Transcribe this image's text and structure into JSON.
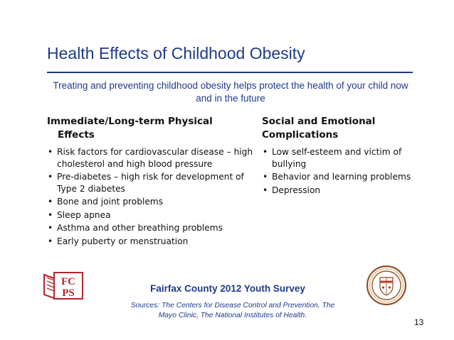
{
  "slide": {
    "title": "Health Effects of Childhood Obesity",
    "subtitle": "Treating and preventing childhood obesity helps protect the health of your child now and in the future",
    "left_column": {
      "heading_line1": "Immediate/Long-term Physical",
      "heading_line2": "Effects",
      "items": [
        "Risk factors for cardiovascular disease – high cholesterol and high blood pressure",
        "Pre-diabetes – high risk for development of Type 2 diabetes",
        "Bone and joint problems",
        "Sleep apnea",
        "Asthma and other breathing problems",
        "Early puberty or menstruation"
      ]
    },
    "right_column": {
      "heading_line1": "Social and Emotional",
      "heading_line2": "Complications",
      "items": [
        "Low self-esteem and victim of bullying",
        "Behavior and learning problems",
        "Depression"
      ]
    },
    "bullet_glyph": "•",
    "footer": {
      "survey_title": "Fairfax County 2012 Youth Survey",
      "sources": "Sources: The Centers for Disease Control and Prevention, The Mayo Clinic, The National Institutes of Health.",
      "page_number": "13"
    },
    "logo_fcps": {
      "top": "FC",
      "bottom": "PS"
    },
    "colors": {
      "title_blue": "#1f3a8a",
      "logo_red": "#b3262e",
      "seal_brown": "#8a4a1c",
      "seal_red": "#c0392b"
    }
  }
}
